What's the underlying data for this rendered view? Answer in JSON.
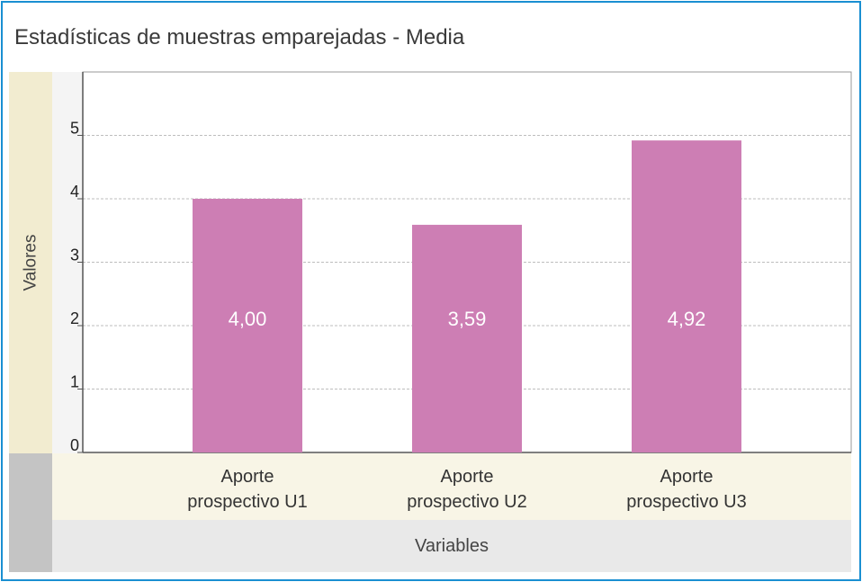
{
  "title": "Estadísticas de muestras emparejadas - Media",
  "colors": {
    "bar": "#cd7eb4",
    "frame": "#1a8fd2",
    "grid": "#bdbdbd",
    "bar_label": "#ffffff"
  },
  "chart_data": {
    "type": "bar",
    "title": "Estadísticas de muestras emparejadas - Media",
    "xlabel": "Variables",
    "ylabel": "Valores",
    "categories": [
      [
        "Aporte",
        "prospectivo U1"
      ],
      [
        "Aporte",
        "prospectivo U2"
      ],
      [
        "Aporte",
        "prospectivo U3"
      ]
    ],
    "values": [
      4.0,
      3.59,
      4.92
    ],
    "data_labels": [
      "4,00",
      "3,59",
      "4,92"
    ],
    "yticks": [
      "0",
      "1",
      "2",
      "3",
      "4",
      "5"
    ],
    "ylim": [
      0,
      6
    ],
    "grid": true,
    "legend": "none"
  }
}
